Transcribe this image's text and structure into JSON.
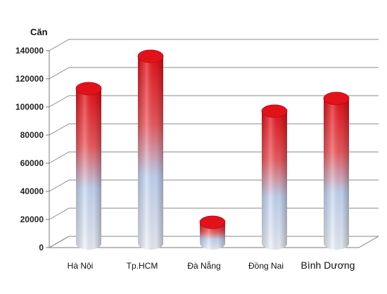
{
  "chart_data": {
    "type": "bar",
    "ylabel": "Căn",
    "categories": [
      "Hà Nội",
      "Tp.HCM",
      "Đà Nẵng",
      "Đồng Nai",
      "Bình Dương"
    ],
    "values": [
      110000,
      133000,
      15000,
      94000,
      103000
    ],
    "ylim": [
      0,
      140000
    ],
    "yticks": [
      0,
      20000,
      40000,
      60000,
      80000,
      100000,
      120000,
      140000
    ],
    "grid": true,
    "legend": "none",
    "colors": {
      "top": "#e8101a",
      "bottom": "#c7d8f5",
      "grid": "#8a8a8a"
    }
  }
}
